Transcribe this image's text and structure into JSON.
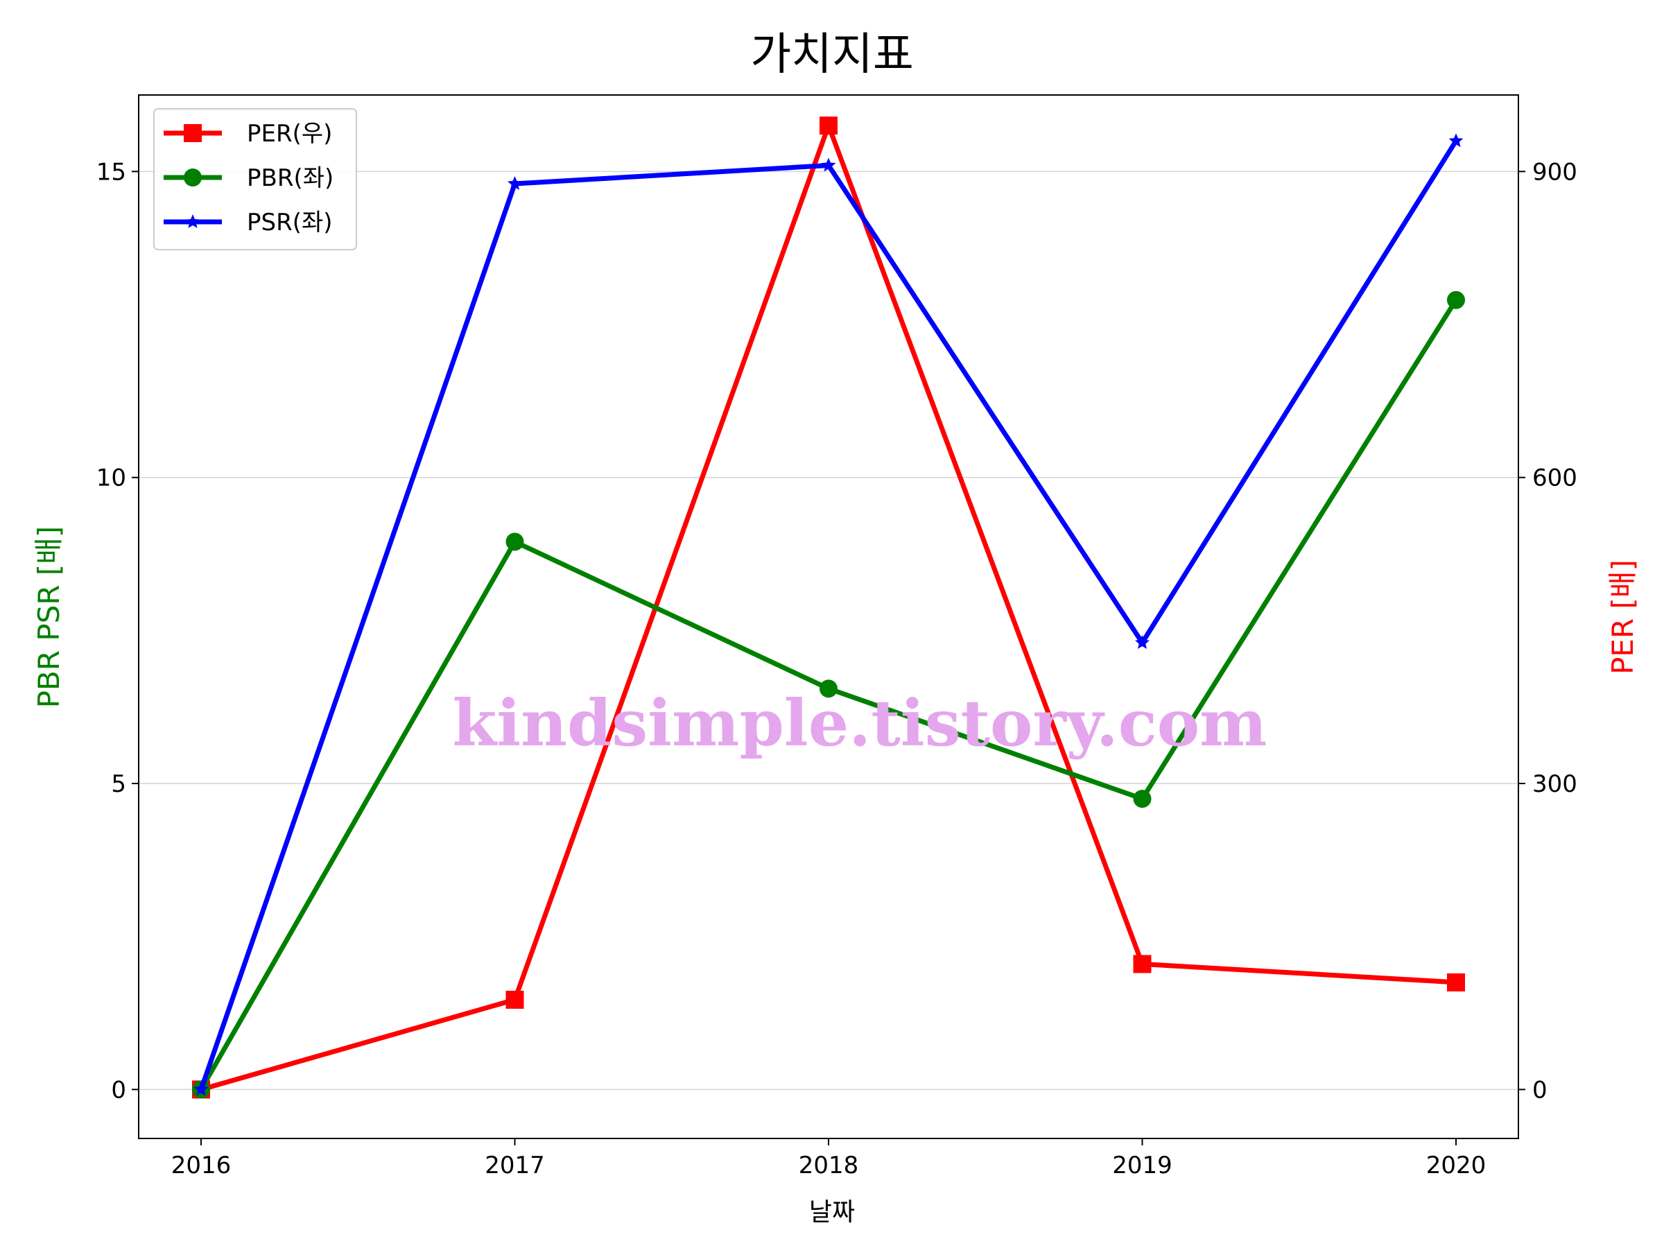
{
  "chart_data": {
    "type": "line",
    "title": "가치지표",
    "xlabel": "날짜",
    "ylabel_left": "PBR PSR [배]",
    "ylabel_right": "PER [배]",
    "x": [
      "2016",
      "2017",
      "2018",
      "2019",
      "2020"
    ],
    "ylim_left": [
      -0.8,
      16.25
    ],
    "ylim_right": [
      -48,
      975
    ],
    "yticks_left": [
      0,
      5,
      10,
      15
    ],
    "yticks_right": [
      0,
      300,
      600,
      900
    ],
    "grid": "horizontal",
    "legend_position": "top-left",
    "series": [
      {
        "name": "PER(우)",
        "axis": "right",
        "color": "#ff0000",
        "marker": "square",
        "values": [
          0,
          88,
          945,
          123,
          105
        ]
      },
      {
        "name": "PBR(좌)",
        "axis": "left",
        "color": "#008000",
        "marker": "circle",
        "values": [
          0,
          8.95,
          6.55,
          4.75,
          12.9
        ]
      },
      {
        "name": "PSR(좌)",
        "axis": "left",
        "color": "#0000ff",
        "marker": "star",
        "values": [
          0,
          14.8,
          15.1,
          7.3,
          15.5
        ]
      }
    ],
    "annotations": [
      "kindsimple.tistory.com"
    ]
  },
  "colors": {
    "ylabel_left": "#008000",
    "ylabel_right": "#ff0000",
    "watermark": "#e4a6ec"
  }
}
